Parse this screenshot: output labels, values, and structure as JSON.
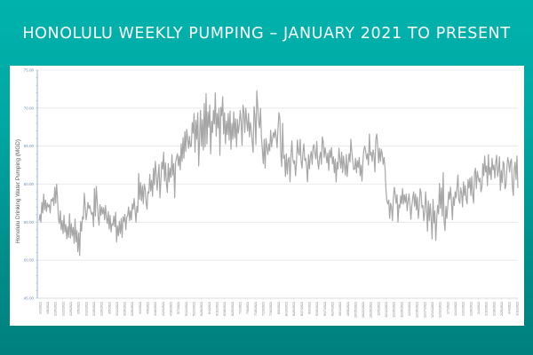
{
  "slide": {
    "title": "HONOLULU WEEKLY PUMPING – JANUARY 2021 TO PRESENT",
    "background_top": "#00b2ac",
    "background_bottom": "#00807e"
  },
  "chart_data": {
    "type": "line",
    "title": "HONOLULU WEEKLY PUMPING – JANUARY 2021 TO PRESENT",
    "xlabel": "",
    "ylabel": "Honolulu Drinking Water Pumping (MGD)",
    "ylim": [
      45,
      75
    ],
    "yticks": [
      "45.00",
      "50.00",
      "55.00",
      "60.00",
      "65.00",
      "70.00",
      "75.00"
    ],
    "grid": true,
    "legend": "none",
    "line_color": "#a6a6a6",
    "axis_color": "#8eaadb",
    "x_tick_labels": [
      "1/1/2021",
      "1/8/2021",
      "1/15/2021",
      "1/22/2021",
      "1/29/2021",
      "2/5/2021",
      "2/12/2021",
      "2/19/2021",
      "2/26/2021",
      "3/5/2021",
      "3/12/2021",
      "3/19/2021",
      "3/26/2021",
      "4/2/2021",
      "4/9/2021",
      "4/16/2021",
      "4/23/2021",
      "4/30/2021",
      "5/7/2021",
      "5/14/2021",
      "5/21/2021",
      "5/28/2021",
      "6/4/2021",
      "6/11/2021",
      "6/18/2021",
      "6/25/2021",
      "7/2/2021",
      "7/9/2021",
      "7/16/2021",
      "7/23/2021",
      "7/30/2021",
      "8/6/2021",
      "8/13/2021",
      "8/20/2021",
      "8/27/2021",
      "9/3/2021",
      "9/10/2021",
      "9/17/2021",
      "9/24/2021",
      "10/1/2021",
      "10/8/2021",
      "10/15/2021",
      "10/22/2021",
      "10/29/2021",
      "11/5/2021",
      "11/12/2021",
      "11/19/2021",
      "11/26/2021",
      "12/3/2021",
      "12/10/2021",
      "12/17/2021",
      "12/24/2021",
      "12/31/2021",
      "1/7/2022",
      "1/14/2022",
      "1/21/2022",
      "1/28/2022",
      "2/4/2022",
      "2/11/2022",
      "2/18/2022",
      "2/25/2022",
      "3/4/2022",
      "3/11/2022"
    ],
    "values": [
      55.2,
      56.0,
      55.0,
      57.6,
      56.2,
      58.7,
      56.6,
      57.9,
      56.4,
      57.5,
      57.0,
      57.3,
      56.2,
      58.0,
      57.8,
      58.2,
      57.2,
      59.6,
      57.5,
      60.0,
      58.1,
      55.4,
      54.8,
      56.5,
      54.0,
      55.2,
      53.5,
      55.9,
      53.7,
      54.7,
      52.8,
      54.4,
      53.0,
      56.1,
      52.9,
      54.8,
      53.2,
      54.3,
      52.2,
      55.4,
      52.4,
      53.9,
      51.1,
      53.6,
      50.6,
      55.1,
      53.8,
      55.7,
      55.4,
      58.8,
      57.1,
      55.3,
      56.2,
      57.6,
      56.8,
      57.2,
      56.4,
      56.0,
      56.3,
      54.4,
      59.4,
      55.8,
      59.7,
      57.8,
      55.7,
      54.6,
      57.3,
      55.9,
      57.0,
      56.1,
      56.9,
      55.3,
      57.2,
      55.6,
      54.8,
      56.4,
      54.1,
      55.9,
      53.7,
      54.8,
      54.6,
      55.8,
      54.4,
      56.3,
      52.4,
      54.5,
      53.2,
      55.1,
      53.5,
      55.5,
      53.0,
      55.7,
      55.1,
      56.0,
      54.0,
      55.6,
      55.9,
      57.0,
      55.2,
      56.5,
      55.3,
      57.4,
      56.7,
      58.1,
      56.6,
      55.0,
      57.1,
      56.3,
      61.4,
      58.0,
      60.2,
      57.8,
      59.8,
      57.4,
      60.0,
      59.4,
      57.6,
      56.7,
      59.0,
      58.8,
      61.3,
      59.1,
      60.5,
      58.4,
      62.1,
      59.9,
      63.0,
      61.4,
      59.2,
      61.0,
      62.6,
      58.2,
      60.4,
      62.9,
      62.0,
      64.2,
      60.4,
      62.8,
      60.1,
      58.9,
      62.7,
      60.3,
      62.1,
      60.9,
      63.9,
      61.2,
      62.7,
      58.2,
      62.9,
      63.5,
      64.0,
      62.4,
      63.7,
      61.9,
      65.3,
      63.0,
      66.1,
      63.4,
      66.9,
      64.3,
      67.2,
      66.0,
      64.7,
      66.3,
      64.9,
      65.0,
      68.1,
      66.7,
      69.3,
      64.2,
      68.4,
      65.9,
      69.4,
      62.4,
      66.2,
      69.7,
      65.0,
      68.5,
      64.5,
      70.6,
      64.9,
      71.9,
      65.3,
      69.5,
      67.5,
      70.4,
      64.0,
      68.3,
      66.8,
      69.7,
      67.9,
      72.0,
      66.3,
      69.3,
      67.4,
      70.0,
      63.8,
      70.1,
      69.0,
      71.5,
      66.6,
      69.4,
      65.3,
      68.3,
      66.5,
      69.3,
      65.8,
      69.6,
      64.6,
      68.0,
      65.9,
      69.5,
      66.1,
      68.6,
      64.9,
      68.5,
      66.7,
      67.8,
      69.7,
      68.2,
      65.1,
      70.4,
      69.6,
      66.8,
      70.0,
      68.4,
      67.0,
      69.3,
      66.2,
      68.1,
      67.2,
      65.5,
      64.2,
      70.2,
      68.9,
      65.2,
      72.3,
      70.3,
      68.1,
      67.4,
      70.0,
      66.2,
      64.5,
      62.7,
      65.9,
      62.1,
      66.0,
      64.8,
      63.9,
      65.3,
      64.4,
      67.1,
      64.9,
      66.0,
      66.8,
      66.1,
      67.2,
      66.2,
      64.8,
      67.4,
      69.4,
      68.6,
      64.0,
      62.3,
      68.0,
      63.4,
      63.8,
      61.0,
      64.0,
      61.3,
      63.2,
      63.5,
      60.3,
      63.7,
      65.7,
      63.3,
      62.7,
      63.1,
      61.1,
      62.9,
      65.8,
      64.2,
      63.8,
      65.9,
      63.0,
      62.1,
      64.2,
      65.3,
      63.1,
      63.4,
      62.2,
      60.3,
      63.9,
      62.0,
      63.6,
      64.3,
      62.6,
      64.9,
      65.2,
      64.0,
      63.3,
      65.6,
      63.0,
      62.0,
      63.5,
      64.2,
      62.6,
      66.2,
      65.6,
      63.5,
      64.8,
      63.9,
      62.8,
      64.1,
      61.8,
      64.5,
      63.5,
      64.8,
      62.7,
      63.6,
      61.5,
      63.3,
      60.3,
      62.9,
      62.0,
      64.7,
      63.4,
      62.1,
      64.2,
      61.5,
      63.7,
      62.4,
      61.2,
      63.9,
      61.0,
      62.6,
      64.0,
      62.9,
      65.9,
      64.2,
      63.0,
      61.9,
      62.0,
      63.4,
      61.5,
      63.1,
      62.2,
      63.5,
      61.1,
      62.5,
      60.4,
      63.0,
      64.5,
      65.0,
      64.3,
      63.3,
      64.0,
      62.5,
      66.6,
      63.8,
      64.2,
      63.0,
      64.5,
      63.9,
      61.6,
      65.9,
      66.6,
      65.1,
      62.8,
      64.7,
      63.0,
      64.6,
      63.9,
      62.6,
      63.5,
      62.1,
      59.2,
      57.8,
      57.4,
      57.9,
      55.5,
      57.5,
      57.0,
      55.2,
      58.1,
      59.6,
      58.7,
      57.5,
      58.6,
      55.0,
      57.3,
      56.9,
      58.5,
      57.4,
      59.4,
      57.4,
      58.6,
      57.6,
      58.7,
      56.5,
      57.8,
      58.7,
      57.3,
      55.4,
      57.1,
      58.2,
      59.0,
      57.1,
      58.7,
      56.6,
      58.3,
      55.5,
      56.8,
      59.4,
      58.9,
      56.9,
      57.2,
      55.2,
      56.2,
      59.0,
      57.0,
      53.8,
      57.8,
      55.2,
      57.4,
      55.4,
      52.8,
      58.0,
      54.9,
      56.5,
      52.6,
      55.4,
      57.2,
      56.1,
      60.1,
      56.8,
      59.5,
      55.8,
      61.5,
      55.2,
      53.9,
      57.1,
      55.5,
      57.1,
      59.0,
      58.0,
      59.6,
      57.7,
      55.3,
      58.3,
      57.2,
      59.0,
      58.2,
      59.6,
      61.2,
      57.9,
      57.5,
      59.5,
      58.8,
      57.0,
      60.3,
      58.5,
      59.8,
      58.0,
      57.4,
      60.6,
      59.5,
      60.8,
      58.5,
      61.0,
      58.6,
      57.5,
      61.5,
      62.1,
      59.4,
      61.7,
      60.9,
      60.3,
      60.8,
      59.0,
      59.6,
      62.7,
      61.1,
      63.7,
      61.6,
      62.4,
      59.8,
      63.9,
      61.2,
      62.2,
      60.6,
      63.4,
      61.9,
      62.5,
      60.8,
      62.9,
      63.8,
      61.0,
      61.9,
      63.6,
      59.2,
      61.8,
      60.2,
      63.0,
      62.6,
      59.4,
      59.8,
      62.0,
      63.5,
      62.9,
      61.6,
      63.0,
      63.3,
      59.7,
      58.5,
      62.0,
      62.9,
      60.6,
      63.7,
      59.5
    ]
  }
}
